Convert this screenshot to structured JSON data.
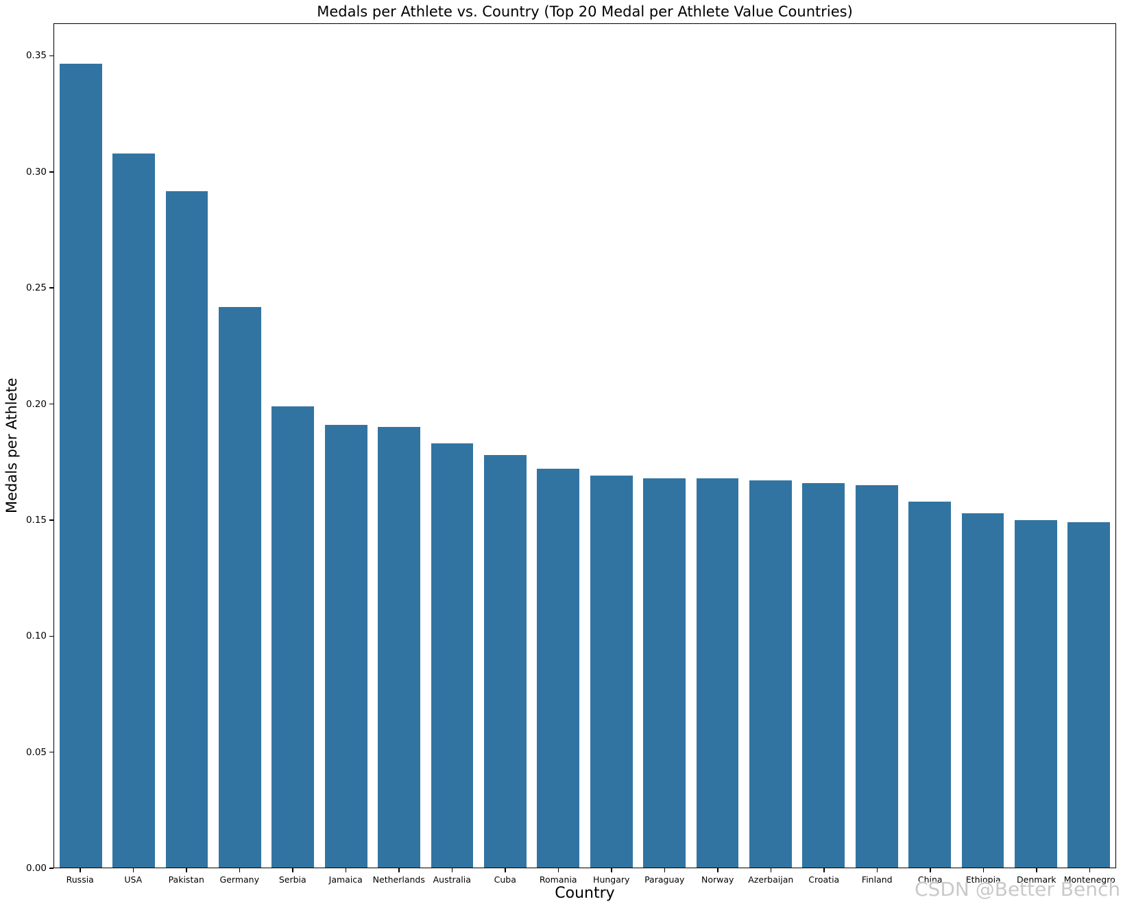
{
  "watermark": "CSDN @Better Bench",
  "colors": {
    "bar": "#3274a1",
    "spine": "#000000",
    "text": "#000000",
    "watermark": "#c9c9c9",
    "background": "#ffffff"
  },
  "chart_data": {
    "type": "bar",
    "title": "Medals per Athlete vs. Country (Top 20 Medal per Athlete Value Countries)",
    "xlabel": "Country",
    "ylabel": "Medals per Athlete",
    "categories": [
      "Russia",
      "USA",
      "Pakistan",
      "Germany",
      "Serbia",
      "Jamaica",
      "Netherlands",
      "Australia",
      "Cuba",
      "Romania",
      "Hungary",
      "Paraguay",
      "Norway",
      "Azerbaijan",
      "Croatia",
      "Finland",
      "China",
      "Ethiopia",
      "Denmark",
      "Montenegro"
    ],
    "values": [
      0.347,
      0.308,
      0.292,
      0.242,
      0.199,
      0.191,
      0.19,
      0.183,
      0.178,
      0.172,
      0.169,
      0.168,
      0.168,
      0.167,
      0.166,
      0.165,
      0.158,
      0.153,
      0.15,
      0.149
    ],
    "yticks": [
      0.0,
      0.05,
      0.1,
      0.15,
      0.2,
      0.25,
      0.3,
      0.35
    ],
    "ylim": [
      0,
      0.364
    ],
    "bar_width_fraction": 0.8,
    "grid": false,
    "legend": "none",
    "bar_color": "#3274a1"
  }
}
